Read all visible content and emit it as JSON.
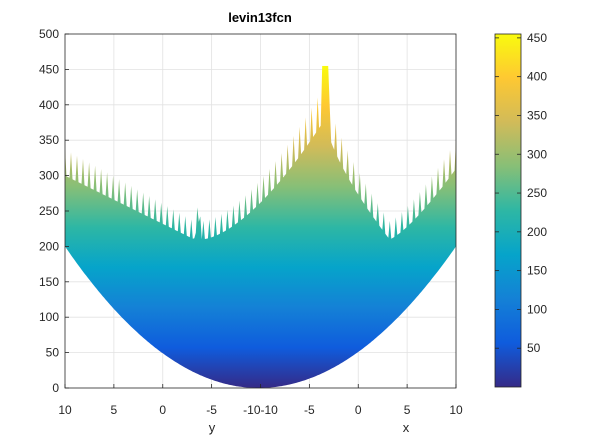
{
  "chart_data": {
    "type": "surface",
    "title": "levin13fcn",
    "x_label": "x",
    "y_label": "y",
    "zlim": [
      0,
      500
    ],
    "z_ticks": [
      0,
      50,
      100,
      150,
      200,
      250,
      300,
      350,
      400,
      450,
      500
    ],
    "y_range": [
      10,
      -10
    ],
    "x_range": [
      -10,
      10
    ],
    "y_ticks": [
      "10",
      "5",
      "0",
      "-5",
      "-10"
    ],
    "x_ticks": [
      "-10",
      "-5",
      "0",
      "5",
      "10"
    ],
    "colorbar": {
      "colormap": "parula",
      "range": [
        0,
        455
      ],
      "ticks": [
        50,
        100,
        150,
        200,
        250,
        300,
        350,
        400,
        450
      ]
    },
    "grid": true,
    "view": "side view of 3-D surface; y axis on left half, x axis on right half"
  },
  "colors": {
    "parula": [
      "#352a87",
      "#0f5cdd",
      "#1481d6",
      "#06a4ca",
      "#2eb7a4",
      "#87bf77",
      "#d1bb59",
      "#fec832",
      "#f9fb0e"
    ]
  }
}
